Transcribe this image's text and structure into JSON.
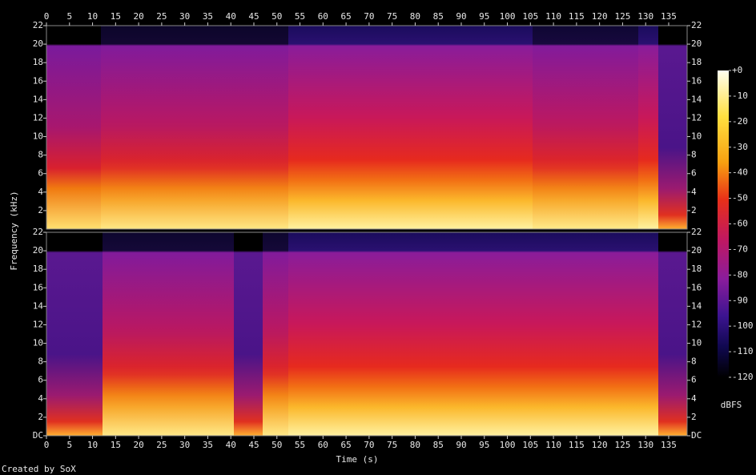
{
  "chart_data": {
    "type": "spectrogram",
    "xlabel": "Time (s)",
    "ylabel": "Frequency (kHz)",
    "xlim": [
      0,
      139
    ],
    "xticks": [
      0,
      5,
      10,
      15,
      20,
      25,
      30,
      35,
      40,
      45,
      50,
      55,
      60,
      65,
      70,
      75,
      80,
      85,
      90,
      95,
      100,
      105,
      110,
      115,
      120,
      125,
      130,
      135
    ],
    "channels": [
      {
        "ylim": [
          0,
          22
        ],
        "yticks": [
          2,
          4,
          6,
          8,
          10,
          12,
          14,
          16,
          18,
          20,
          22
        ]
      },
      {
        "ylim": [
          0,
          22
        ],
        "yticks": [
          {
            "value": 0,
            "label": "DC"
          },
          2,
          4,
          6,
          8,
          10,
          12,
          14,
          16,
          18,
          20,
          22
        ]
      }
    ],
    "colorbar": {
      "label": "dBFS",
      "lim": [
        -120,
        0
      ],
      "ticks": [
        {
          "value": 0,
          "label": "+0"
        },
        -10,
        -20,
        -30,
        -40,
        -50,
        -60,
        -70,
        -80,
        -90,
        -100,
        -110,
        -120
      ]
    },
    "footer": "Created by SoX"
  }
}
